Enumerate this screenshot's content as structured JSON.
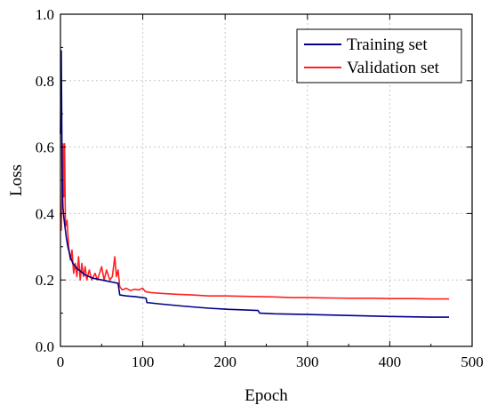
{
  "chart_data": {
    "type": "line",
    "title": "",
    "xlabel": "Epoch",
    "ylabel": "Loss",
    "xlim": [
      0,
      500
    ],
    "ylim": [
      0.0,
      1.0
    ],
    "xticks": [
      0,
      100,
      200,
      300,
      400,
      500
    ],
    "yticks": [
      0.0,
      0.2,
      0.4,
      0.6,
      0.8,
      1.0
    ],
    "xtick_labels": [
      "0",
      "100",
      "200",
      "300",
      "400",
      "500"
    ],
    "ytick_labels": [
      "0.0",
      "0.2",
      "0.4",
      "0.6",
      "0.8",
      "1.0"
    ],
    "grid": true,
    "legend_position": "top-right",
    "series": [
      {
        "name": "Training set",
        "color": "#00008b",
        "points": [
          [
            0,
            0.64
          ],
          [
            1,
            0.89
          ],
          [
            2,
            0.52
          ],
          [
            3,
            0.42
          ],
          [
            4,
            0.39
          ],
          [
            5,
            0.37
          ],
          [
            7,
            0.33
          ],
          [
            9,
            0.3
          ],
          [
            12,
            0.27
          ],
          [
            15,
            0.25
          ],
          [
            20,
            0.235
          ],
          [
            25,
            0.225
          ],
          [
            30,
            0.215
          ],
          [
            40,
            0.205
          ],
          [
            50,
            0.2
          ],
          [
            60,
            0.195
          ],
          [
            70,
            0.19
          ],
          [
            72,
            0.155
          ],
          [
            80,
            0.152
          ],
          [
            90,
            0.15
          ],
          [
            100,
            0.147
          ],
          [
            104,
            0.145
          ],
          [
            105,
            0.132
          ],
          [
            120,
            0.128
          ],
          [
            150,
            0.121
          ],
          [
            180,
            0.115
          ],
          [
            200,
            0.112
          ],
          [
            220,
            0.11
          ],
          [
            240,
            0.108
          ],
          [
            242,
            0.1
          ],
          [
            260,
            0.098
          ],
          [
            300,
            0.096
          ],
          [
            350,
            0.093
          ],
          [
            400,
            0.09
          ],
          [
            450,
            0.088
          ],
          [
            472,
            0.088
          ]
        ]
      },
      {
        "name": "Validation set",
        "color": "#ff2020",
        "points": [
          [
            0,
            0.4
          ],
          [
            1,
            0.35
          ],
          [
            2,
            0.5
          ],
          [
            3,
            0.61
          ],
          [
            4,
            0.45
          ],
          [
            5,
            0.61
          ],
          [
            6,
            0.36
          ],
          [
            8,
            0.38
          ],
          [
            10,
            0.3
          ],
          [
            12,
            0.26
          ],
          [
            14,
            0.29
          ],
          [
            16,
            0.22
          ],
          [
            18,
            0.25
          ],
          [
            20,
            0.21
          ],
          [
            22,
            0.27
          ],
          [
            24,
            0.2
          ],
          [
            26,
            0.25
          ],
          [
            28,
            0.21
          ],
          [
            30,
            0.24
          ],
          [
            32,
            0.2
          ],
          [
            35,
            0.23
          ],
          [
            38,
            0.2
          ],
          [
            42,
            0.22
          ],
          [
            45,
            0.2
          ],
          [
            50,
            0.24
          ],
          [
            53,
            0.2
          ],
          [
            56,
            0.23
          ],
          [
            60,
            0.2
          ],
          [
            63,
            0.21
          ],
          [
            66,
            0.27
          ],
          [
            68,
            0.21
          ],
          [
            70,
            0.23
          ],
          [
            72,
            0.18
          ],
          [
            75,
            0.17
          ],
          [
            80,
            0.175
          ],
          [
            85,
            0.168
          ],
          [
            90,
            0.172
          ],
          [
            95,
            0.17
          ],
          [
            100,
            0.175
          ],
          [
            103,
            0.165
          ],
          [
            110,
            0.162
          ],
          [
            120,
            0.16
          ],
          [
            140,
            0.157
          ],
          [
            160,
            0.155
          ],
          [
            180,
            0.152
          ],
          [
            200,
            0.152
          ],
          [
            220,
            0.151
          ],
          [
            240,
            0.15
          ],
          [
            260,
            0.149
          ],
          [
            280,
            0.147
          ],
          [
            300,
            0.147
          ],
          [
            320,
            0.146
          ],
          [
            350,
            0.145
          ],
          [
            380,
            0.145
          ],
          [
            400,
            0.144
          ],
          [
            430,
            0.144
          ],
          [
            450,
            0.143
          ],
          [
            472,
            0.143
          ]
        ]
      }
    ]
  }
}
